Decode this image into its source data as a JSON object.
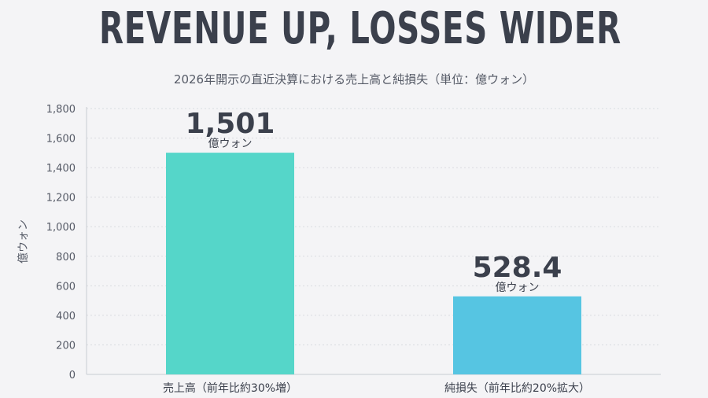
{
  "title": "REVENUE UP, LOSSES WIDER",
  "subtitle": "2026年開示の直近決算における売上高と純損失（単位：億ウォン）",
  "chart_data": {
    "type": "bar",
    "categories": [
      "売上高（前年比約30%増）",
      "純損失（前年比約20%拡大）"
    ],
    "values": [
      1501,
      528.4
    ],
    "value_labels": [
      "1,501",
      "528.4"
    ],
    "value_unit": "億ウォン",
    "ylabel": "億ウォン",
    "ylim": [
      0,
      1800
    ],
    "yticks": [
      0,
      200,
      400,
      600,
      800,
      1000,
      1200,
      1400,
      1600,
      1800
    ],
    "ytick_labels": [
      "0",
      "200",
      "400",
      "600",
      "800",
      "1,000",
      "1,200",
      "1,400",
      "1,600",
      "1,800"
    ],
    "colors": [
      "#55d6c9",
      "#56c5e2"
    ],
    "grid": true
  }
}
